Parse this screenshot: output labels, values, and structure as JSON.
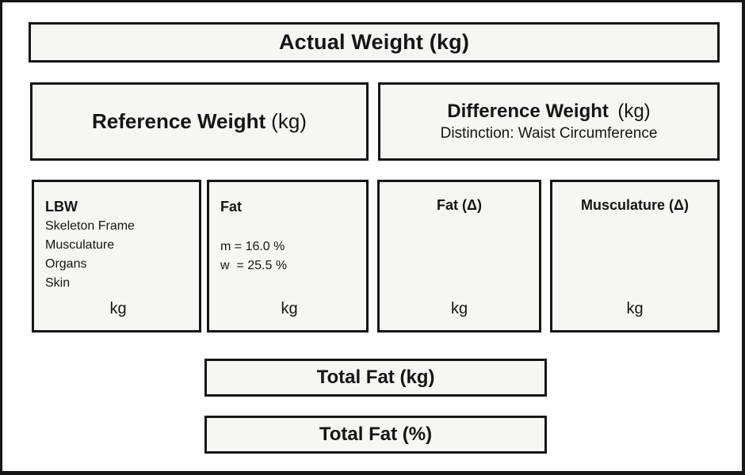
{
  "diagram": {
    "actual_weight": {
      "title": "Actual Weight (kg)"
    },
    "reference_weight": {
      "title": "Reference Weight",
      "unit": "(kg)"
    },
    "difference_weight": {
      "title": "Difference Weight",
      "unit": "(kg)",
      "subtitle": "Distinction: Waist Circumference"
    },
    "lbw": {
      "title": "LBW",
      "items": [
        "Skeleton Frame",
        "Musculature",
        "Organs",
        "Skin"
      ],
      "unit": "kg"
    },
    "fat": {
      "title": "Fat",
      "lines": [
        "m = 16.0 %",
        "w  = 25.5 %"
      ],
      "unit": "kg"
    },
    "fat_delta": {
      "title": "Fat (Δ)",
      "unit": "kg"
    },
    "musculature_delta": {
      "title": "Musculature (Δ)",
      "unit": "kg"
    },
    "total_fat_kg": {
      "title": "Total Fat (kg)"
    },
    "total_fat_pct": {
      "title": "Total Fat (%)"
    }
  },
  "colors": {
    "background": "#ffffff",
    "box_fill": "#f6f6f4",
    "border": "#161616",
    "text": "#151515"
  }
}
